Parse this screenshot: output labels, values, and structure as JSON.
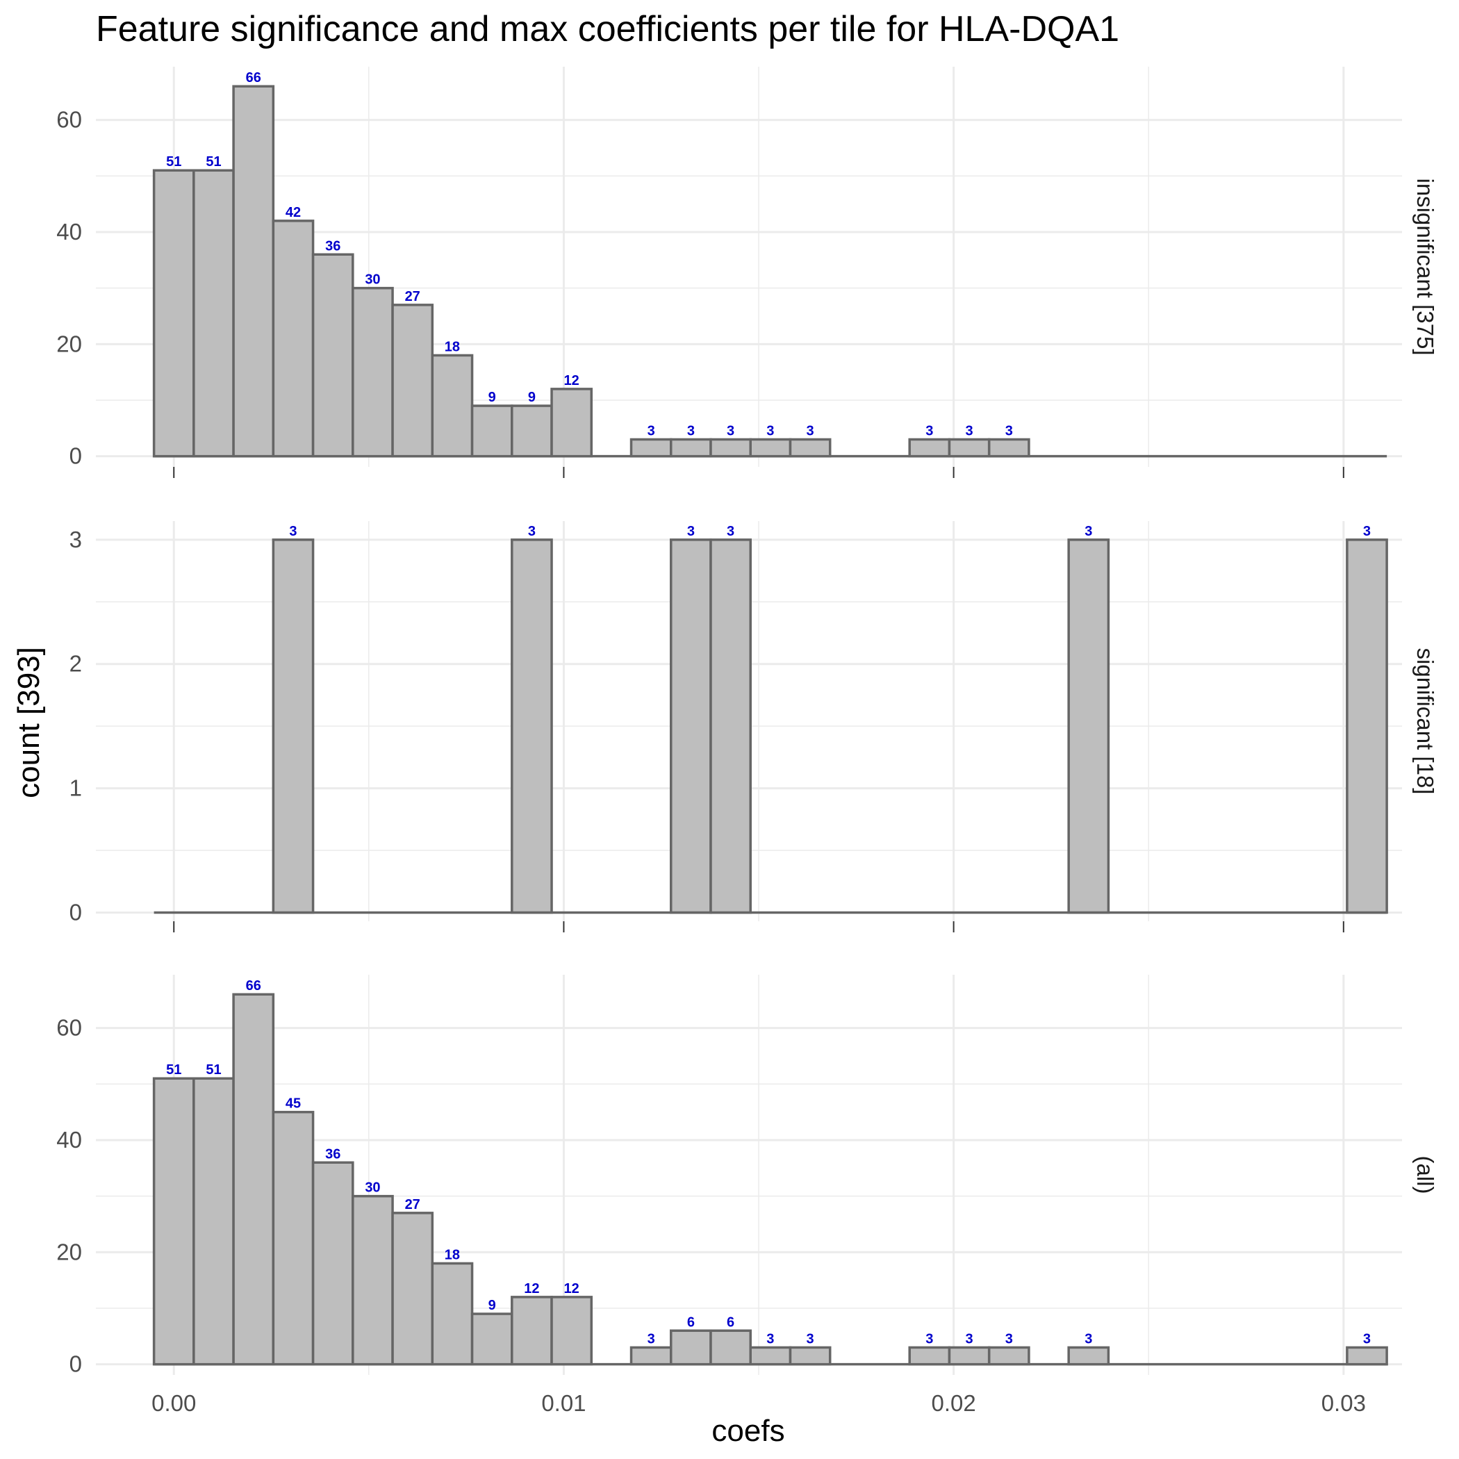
{
  "colors": {
    "bar_fill": "#bebebe",
    "bar_stroke": "#666666",
    "label": "#0000cc",
    "grid": "#ebebeb"
  },
  "chart_data": {
    "type": "bar",
    "subtype": "faceted-histogram",
    "title": "Feature significance and max coefficients per tile for HLA-DQA1",
    "xlabel": "coefs",
    "ylabel": "count [393]",
    "x_ticks": [
      0.0,
      0.01,
      0.02,
      0.03
    ],
    "x_tick_labels": [
      "0.00",
      "0.01",
      "0.02",
      "0.03"
    ],
    "xlim": [
      -0.002,
      0.0315
    ],
    "bin_width": 0.00102,
    "bin_start": 0.0,
    "n_bins": 31,
    "grid": true,
    "facets": [
      {
        "strip": "insignificant [375]",
        "ylim": [
          -1.9,
          69.5
        ],
        "y_ticks": [
          0,
          20,
          40,
          60
        ],
        "y_tick_labels": [
          "0",
          "20",
          "40",
          "60"
        ],
        "counts": [
          51,
          51,
          66,
          42,
          36,
          30,
          27,
          18,
          9,
          9,
          12,
          0,
          3,
          3,
          3,
          3,
          3,
          0,
          0,
          3,
          3,
          3,
          0,
          0,
          0,
          0,
          0,
          0,
          0,
          0,
          0
        ]
      },
      {
        "strip": "significant [18]",
        "ylim": [
          -0.07,
          3.15
        ],
        "y_ticks": [
          0,
          1,
          2,
          3
        ],
        "y_tick_labels": [
          "0",
          "1",
          "2",
          "3"
        ],
        "counts": [
          0,
          0,
          0,
          3,
          0,
          0,
          0,
          0,
          0,
          3,
          0,
          0,
          0,
          3,
          3,
          0,
          0,
          0,
          0,
          0,
          0,
          0,
          0,
          3,
          0,
          0,
          0,
          0,
          0,
          0,
          3
        ]
      },
      {
        "strip": "(all)",
        "ylim": [
          -1.9,
          69.5
        ],
        "y_ticks": [
          0,
          20,
          40,
          60
        ],
        "y_tick_labels": [
          "0",
          "20",
          "40",
          "60"
        ],
        "counts": [
          51,
          51,
          66,
          45,
          36,
          30,
          27,
          18,
          9,
          12,
          12,
          0,
          3,
          6,
          6,
          3,
          3,
          0,
          0,
          3,
          3,
          3,
          0,
          3,
          0,
          0,
          0,
          0,
          0,
          0,
          3
        ]
      }
    ]
  }
}
